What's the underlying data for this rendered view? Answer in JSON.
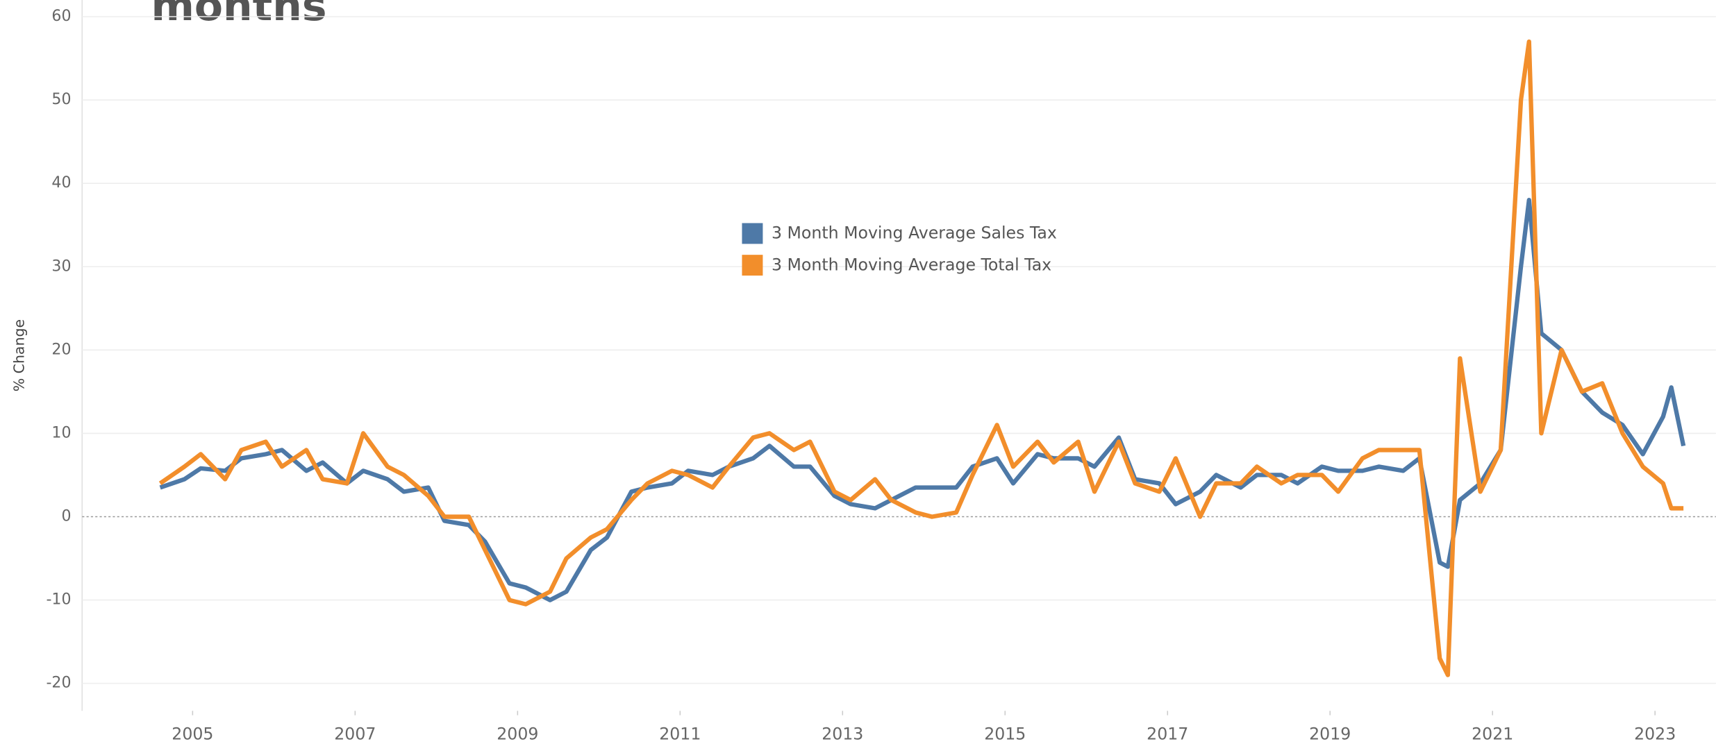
{
  "chart_data": {
    "type": "line",
    "title": "months",
    "y_label": "% Change",
    "x": [
      2004.6,
      2004.9,
      2005.1,
      2005.4,
      2005.6,
      2005.9,
      2006.1,
      2006.4,
      2006.6,
      2006.9,
      2007.1,
      2007.4,
      2007.6,
      2007.9,
      2008.1,
      2008.4,
      2008.6,
      2008.9,
      2009.1,
      2009.4,
      2009.6,
      2009.9,
      2010.1,
      2010.4,
      2010.6,
      2010.9,
      2011.1,
      2011.4,
      2011.6,
      2011.9,
      2012.1,
      2012.4,
      2012.6,
      2012.9,
      2013.1,
      2013.4,
      2013.6,
      2013.9,
      2014.1,
      2014.4,
      2014.6,
      2014.9,
      2015.1,
      2015.4,
      2015.6,
      2015.9,
      2016.1,
      2016.4,
      2016.6,
      2016.9,
      2017.1,
      2017.4,
      2017.6,
      2017.9,
      2018.1,
      2018.4,
      2018.6,
      2018.9,
      2019.1,
      2019.4,
      2019.6,
      2019.9,
      2020.1,
      2020.35,
      2020.45,
      2020.6,
      2020.85,
      2021.1,
      2021.35,
      2021.45,
      2021.6,
      2021.85,
      2022.1,
      2022.35,
      2022.6,
      2022.85,
      2023.1,
      2023.2,
      2023.35
    ],
    "series": [
      {
        "name": "3 Month Moving Average Sales Tax",
        "color": "#4e79a7",
        "values": [
          3.5,
          4.5,
          5.8,
          5.5,
          7,
          7.5,
          8,
          5.5,
          6.5,
          4,
          5.5,
          4.5,
          3,
          3.5,
          -0.5,
          -1,
          -3,
          -8,
          -8.5,
          -10,
          -9,
          -4,
          -2.5,
          3,
          3.5,
          4,
          5.5,
          5,
          6,
          7,
          8.5,
          6,
          6,
          2.5,
          1.5,
          1,
          2,
          3.5,
          3.5,
          3.5,
          6,
          7,
          4,
          7.5,
          7,
          7,
          6,
          9.5,
          4.5,
          4,
          1.5,
          3,
          5,
          3.5,
          5,
          5,
          4,
          6,
          5.5,
          5.5,
          6,
          5.5,
          7,
          -5.5,
          -6,
          2,
          4,
          8,
          30,
          38,
          22,
          20,
          15,
          12.5,
          11,
          7.5,
          12,
          15.5,
          8.5
        ]
      },
      {
        "name": "3 Month Moving Average Total Tax",
        "color": "#f28e2b",
        "values": [
          4,
          6,
          7.5,
          4.5,
          8,
          9,
          6,
          8,
          4.5,
          4,
          10,
          6,
          5,
          2.5,
          0,
          0,
          -4,
          -10,
          -10.5,
          -9,
          -5,
          -2.5,
          -1.5,
          2,
          4,
          5.5,
          5,
          3.5,
          6,
          9.5,
          10,
          8,
          9,
          3,
          2,
          4.5,
          2,
          0.5,
          0,
          0.5,
          5,
          11,
          6,
          9,
          6.5,
          9,
          3,
          9,
          4,
          3,
          7,
          0,
          4,
          4,
          6,
          4,
          5,
          5,
          3,
          7,
          8,
          8,
          8,
          -17,
          -19,
          19,
          3,
          8,
          50,
          57,
          10,
          20,
          15,
          16,
          10,
          6,
          4,
          1,
          1
        ]
      }
    ],
    "xlim": [
      2003.64,
      2023.75
    ],
    "xticks": [
      2005,
      2007,
      2009,
      2011,
      2013,
      2015,
      2017,
      2019,
      2021,
      2023
    ],
    "ylim": [
      -23.3,
      62
    ],
    "yticks": [
      -20,
      -10,
      0,
      10,
      20,
      30,
      40,
      50,
      60
    ],
    "grid": true
  }
}
